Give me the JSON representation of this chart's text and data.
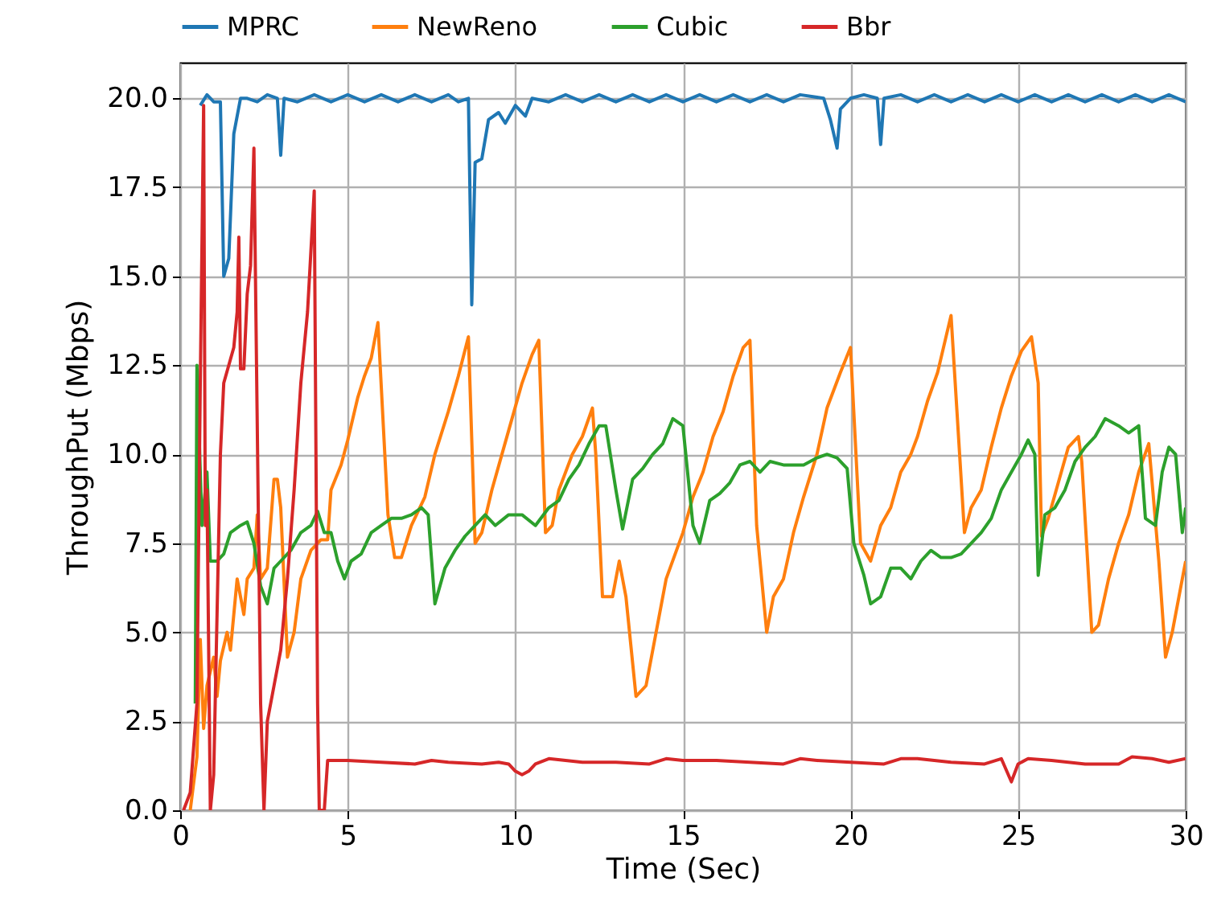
{
  "chart_data": {
    "type": "line",
    "xlabel": "Time (Sec)",
    "ylabel": "ThroughPut (Mbps)",
    "xlim": [
      0,
      30
    ],
    "xticks": [
      0,
      5,
      10,
      15,
      20,
      25,
      30
    ],
    "ylim": [
      0,
      21
    ],
    "yticks": [
      {
        "value": 0,
        "label": "0.0"
      },
      {
        "value": 2.5,
        "label": "2.5"
      },
      {
        "value": 5,
        "label": "5.0"
      },
      {
        "value": 7.5,
        "label": "7.5"
      },
      {
        "value": 10,
        "label": "10.0"
      },
      {
        "value": 12.5,
        "label": "12.5"
      },
      {
        "value": 15,
        "label": "15.0"
      },
      {
        "value": 17.5,
        "label": "17.5"
      },
      {
        "value": 20,
        "label": "20.0"
      }
    ],
    "grid": true,
    "legend": "top",
    "marker": "none",
    "line_style": "solid",
    "series": [
      {
        "name": "MPRC",
        "color": "#1f77b4",
        "x": [
          0.6,
          0.8,
          1.0,
          1.2,
          1.3,
          1.45,
          1.6,
          1.8,
          2.0,
          2.3,
          2.6,
          2.9,
          3.0,
          3.1,
          3.5,
          4.0,
          4.5,
          5.0,
          5.5,
          6.0,
          6.5,
          7.0,
          7.5,
          8.0,
          8.3,
          8.6,
          8.7,
          8.8,
          9.0,
          9.2,
          9.5,
          9.7,
          10.0,
          10.3,
          10.5,
          11.0,
          11.5,
          12.0,
          12.5,
          13.0,
          13.5,
          14.0,
          14.5,
          15.0,
          15.5,
          16.0,
          16.5,
          17.0,
          17.5,
          18.0,
          18.5,
          19.2,
          19.4,
          19.6,
          19.7,
          20.0,
          20.4,
          20.8,
          20.9,
          21.0,
          21.5,
          22.0,
          22.5,
          23.0,
          23.5,
          24.0,
          24.5,
          25.0,
          25.5,
          26.0,
          26.5,
          27.0,
          27.5,
          28.0,
          28.5,
          29.0,
          29.5,
          30.0
        ],
        "values": [
          19.8,
          20.1,
          19.9,
          19.9,
          15.0,
          15.5,
          19.0,
          20.0,
          20.0,
          19.9,
          20.1,
          20.0,
          18.4,
          20.0,
          19.9,
          20.1,
          19.9,
          20.1,
          19.9,
          20.1,
          19.9,
          20.1,
          19.9,
          20.1,
          19.9,
          20.0,
          14.2,
          18.2,
          18.3,
          19.4,
          19.6,
          19.3,
          19.8,
          19.5,
          20.0,
          19.9,
          20.1,
          19.9,
          20.1,
          19.9,
          20.1,
          19.9,
          20.1,
          19.9,
          20.1,
          19.9,
          20.1,
          19.9,
          20.1,
          19.9,
          20.1,
          20.0,
          19.4,
          18.6,
          19.7,
          20.0,
          20.1,
          20.0,
          18.7,
          20.0,
          20.1,
          19.9,
          20.1,
          19.9,
          20.1,
          19.9,
          20.1,
          19.9,
          20.1,
          19.9,
          20.1,
          19.9,
          20.1,
          19.9,
          20.1,
          19.9,
          20.1,
          19.9
        ]
      },
      {
        "name": "NewReno",
        "color": "#ff7f0e",
        "x": [
          0.3,
          0.5,
          0.6,
          0.7,
          0.8,
          1.0,
          1.1,
          1.2,
          1.4,
          1.5,
          1.7,
          1.9,
          2.0,
          2.2,
          2.3,
          2.4,
          2.6,
          2.8,
          2.9,
          3.0,
          3.2,
          3.4,
          3.6,
          3.9,
          4.2,
          4.4,
          4.5,
          4.8,
          5.0,
          5.3,
          5.5,
          5.7,
          5.9,
          6.2,
          6.4,
          6.6,
          6.9,
          7.3,
          7.6,
          8.0,
          8.3,
          8.6,
          8.8,
          9.0,
          9.3,
          9.6,
          9.9,
          10.2,
          10.5,
          10.7,
          10.9,
          11.1,
          11.3,
          11.7,
          12.0,
          12.3,
          12.4,
          12.6,
          12.9,
          13.1,
          13.3,
          13.6,
          13.9,
          14.2,
          14.5,
          15.0,
          15.3,
          15.6,
          15.9,
          16.2,
          16.5,
          16.8,
          17.0,
          17.2,
          17.5,
          17.7,
          18.0,
          18.3,
          18.6,
          19.0,
          19.3,
          19.7,
          20.0,
          20.3,
          20.6,
          20.9,
          21.2,
          21.5,
          21.8,
          22.0,
          22.3,
          22.6,
          22.9,
          23.0,
          23.4,
          23.6,
          23.9,
          24.2,
          24.5,
          24.8,
          25.1,
          25.4,
          25.6,
          25.7,
          25.9,
          26.2,
          26.5,
          26.8,
          26.9,
          27.2,
          27.4,
          27.7,
          28.0,
          28.3,
          28.6,
          28.9,
          29.2,
          29.4,
          29.6,
          29.9,
          30.0
        ],
        "values": [
          0.0,
          1.5,
          4.8,
          2.3,
          3.5,
          4.3,
          3.2,
          4.2,
          5.0,
          4.5,
          6.5,
          5.5,
          6.5,
          6.8,
          8.3,
          6.5,
          6.8,
          9.3,
          9.3,
          8.5,
          4.3,
          5.0,
          6.5,
          7.3,
          7.6,
          7.6,
          9.0,
          9.7,
          10.4,
          11.6,
          12.2,
          12.7,
          13.7,
          8.3,
          7.1,
          7.1,
          8.0,
          8.8,
          10.0,
          11.2,
          12.2,
          13.3,
          7.5,
          7.8,
          9.0,
          10.0,
          11.0,
          12.0,
          12.8,
          13.2,
          7.8,
          8.0,
          9.0,
          10.0,
          10.5,
          11.3,
          10.0,
          6.0,
          6.0,
          7.0,
          6.0,
          3.2,
          3.5,
          5.0,
          6.5,
          7.8,
          8.8,
          9.5,
          10.5,
          11.2,
          12.2,
          13.0,
          13.2,
          8.0,
          5.0,
          6.0,
          6.5,
          7.8,
          8.8,
          10.0,
          11.3,
          12.3,
          13.0,
          7.5,
          7.0,
          8.0,
          8.5,
          9.5,
          10.0,
          10.5,
          11.5,
          12.3,
          13.5,
          13.9,
          7.8,
          8.5,
          9.0,
          10.2,
          11.3,
          12.2,
          12.9,
          13.3,
          12.0,
          7.7,
          8.2,
          9.2,
          10.2,
          10.5,
          9.8,
          5.0,
          5.2,
          6.5,
          7.5,
          8.3,
          9.5,
          10.3,
          7.0,
          4.3,
          5.0,
          6.5,
          7.0
        ]
      },
      {
        "name": "Cubic",
        "color": "#2ca02c",
        "x": [
          0.45,
          0.5,
          0.65,
          0.8,
          0.9,
          1.1,
          1.3,
          1.5,
          1.8,
          2.0,
          2.2,
          2.4,
          2.6,
          2.8,
          3.0,
          3.3,
          3.6,
          3.9,
          4.1,
          4.3,
          4.5,
          4.7,
          4.9,
          5.1,
          5.4,
          5.7,
          6.0,
          6.3,
          6.6,
          6.9,
          7.2,
          7.4,
          7.6,
          7.9,
          8.2,
          8.5,
          8.8,
          9.1,
          9.4,
          9.8,
          10.2,
          10.6,
          11.0,
          11.3,
          11.6,
          11.9,
          12.2,
          12.5,
          12.7,
          13.0,
          13.2,
          13.5,
          13.8,
          14.1,
          14.4,
          14.7,
          15.0,
          15.3,
          15.5,
          15.8,
          16.1,
          16.4,
          16.7,
          17.0,
          17.3,
          17.6,
          18.0,
          18.3,
          18.6,
          19.0,
          19.3,
          19.6,
          19.9,
          20.1,
          20.4,
          20.6,
          20.9,
          21.2,
          21.5,
          21.8,
          22.1,
          22.4,
          22.7,
          23.0,
          23.3,
          23.6,
          23.9,
          24.2,
          24.5,
          24.8,
          25.1,
          25.3,
          25.5,
          25.6,
          25.8,
          26.1,
          26.4,
          26.7,
          27.0,
          27.3,
          27.6,
          28.0,
          28.3,
          28.6,
          28.8,
          29.1,
          29.3,
          29.5,
          29.7,
          29.9,
          30.0
        ],
        "values": [
          3.0,
          12.5,
          8.0,
          9.5,
          7.0,
          7.0,
          7.2,
          7.8,
          8.0,
          8.1,
          7.5,
          6.3,
          5.8,
          6.8,
          7.0,
          7.3,
          7.8,
          8.0,
          8.4,
          7.8,
          7.8,
          7.0,
          6.5,
          7.0,
          7.2,
          7.8,
          8.0,
          8.2,
          8.2,
          8.3,
          8.5,
          8.3,
          5.8,
          6.8,
          7.3,
          7.7,
          8.0,
          8.3,
          8.0,
          8.3,
          8.3,
          8.0,
          8.5,
          8.7,
          9.3,
          9.7,
          10.3,
          10.8,
          10.8,
          9.0,
          7.9,
          9.3,
          9.6,
          10.0,
          10.3,
          11.0,
          10.8,
          8.0,
          7.5,
          8.7,
          8.9,
          9.2,
          9.7,
          9.8,
          9.5,
          9.8,
          9.7,
          9.7,
          9.7,
          9.9,
          10.0,
          9.9,
          9.6,
          7.5,
          6.6,
          5.8,
          6.0,
          6.8,
          6.8,
          6.5,
          7.0,
          7.3,
          7.1,
          7.1,
          7.2,
          7.5,
          7.8,
          8.2,
          9.0,
          9.5,
          10.0,
          10.4,
          10.0,
          6.6,
          8.3,
          8.5,
          9.0,
          9.8,
          10.2,
          10.5,
          11.0,
          10.8,
          10.6,
          10.8,
          8.2,
          8.0,
          9.5,
          10.2,
          10.0,
          7.8,
          8.5
        ]
      },
      {
        "name": "Bbr",
        "color": "#d62728",
        "x": [
          0.1,
          0.3,
          0.5,
          0.6,
          0.7,
          0.75,
          0.8,
          0.9,
          1.0,
          1.2,
          1.3,
          1.6,
          1.7,
          1.75,
          1.8,
          1.9,
          2.0,
          2.1,
          2.2,
          2.4,
          2.5,
          2.6,
          2.8,
          3.0,
          3.2,
          3.4,
          3.6,
          3.8,
          4.0,
          4.1,
          4.15,
          4.3,
          4.4,
          5.0,
          6.0,
          7.0,
          7.5,
          8.0,
          9.0,
          9.5,
          9.8,
          10.0,
          10.2,
          10.4,
          10.6,
          11.0,
          12.0,
          13.0,
          14.0,
          14.5,
          15.0,
          16.0,
          17.0,
          18.0,
          18.5,
          19.0,
          20.0,
          21.0,
          21.5,
          22.0,
          23.0,
          24.0,
          24.5,
          24.8,
          25.0,
          25.3,
          26.0,
          27.0,
          28.0,
          28.4,
          29.0,
          29.5,
          30.0
        ],
        "values": [
          0.0,
          0.5,
          3.0,
          12.0,
          19.8,
          8.0,
          9.0,
          0.0,
          1.0,
          10.0,
          12.0,
          13.0,
          14.0,
          16.1,
          12.4,
          12.4,
          14.5,
          15.3,
          18.6,
          3.0,
          0.0,
          2.5,
          3.5,
          4.5,
          6.5,
          9.0,
          12.0,
          14.0,
          17.4,
          3.0,
          0.0,
          0.0,
          1.4,
          1.4,
          1.35,
          1.3,
          1.4,
          1.35,
          1.3,
          1.35,
          1.3,
          1.1,
          1.0,
          1.1,
          1.3,
          1.45,
          1.35,
          1.35,
          1.3,
          1.45,
          1.4,
          1.4,
          1.35,
          1.3,
          1.45,
          1.4,
          1.35,
          1.3,
          1.45,
          1.45,
          1.35,
          1.3,
          1.45,
          0.8,
          1.3,
          1.45,
          1.4,
          1.3,
          1.3,
          1.5,
          1.45,
          1.35,
          1.45
        ]
      }
    ]
  }
}
